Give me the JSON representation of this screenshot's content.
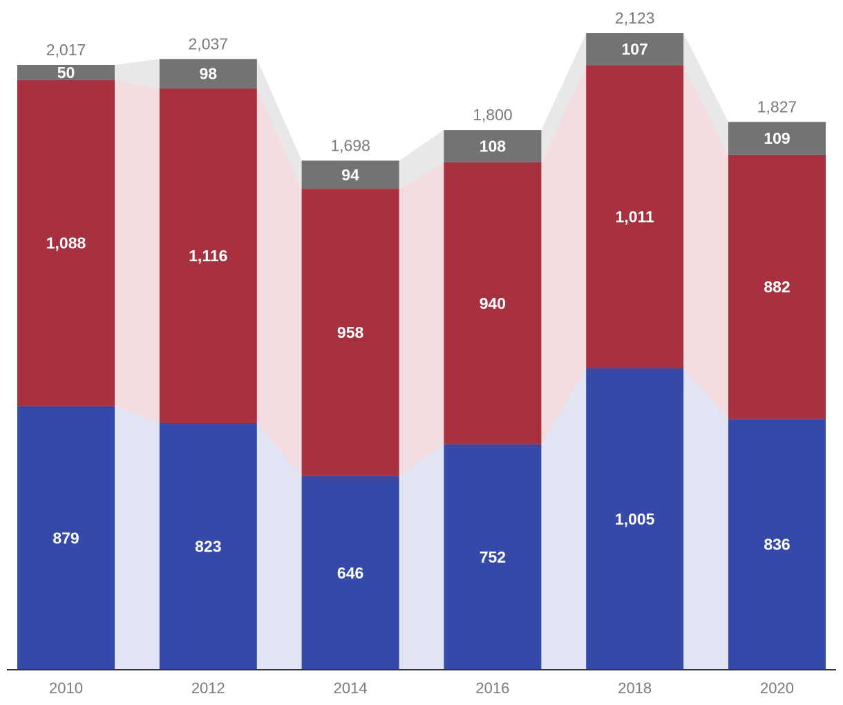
{
  "chart_data": {
    "type": "bar",
    "stacked": true,
    "categories": [
      "2010",
      "2012",
      "2014",
      "2016",
      "2018",
      "2020"
    ],
    "series": [
      {
        "values": [
          879,
          823,
          646,
          752,
          1005,
          836
        ],
        "color": "#3449a8",
        "band_color": "#e1e4f3"
      },
      {
        "values": [
          1088,
          1116,
          958,
          940,
          1011,
          882
        ],
        "color": "#a83140",
        "band_color": "#f4dde0"
      },
      {
        "values": [
          50,
          98,
          94,
          108,
          107,
          109
        ],
        "color": "#737373",
        "band_color": "#e8e8e8"
      }
    ],
    "totals": [
      2017,
      2037,
      1698,
      1800,
      2123,
      1827
    ],
    "ylim": [
      0,
      2123
    ],
    "grid": false,
    "legend": "none",
    "colors": {
      "axis": "#333333",
      "total_text": "#7a7a7a",
      "tick_text": "#7a7a7a",
      "segment_text": "#ffffff"
    }
  }
}
